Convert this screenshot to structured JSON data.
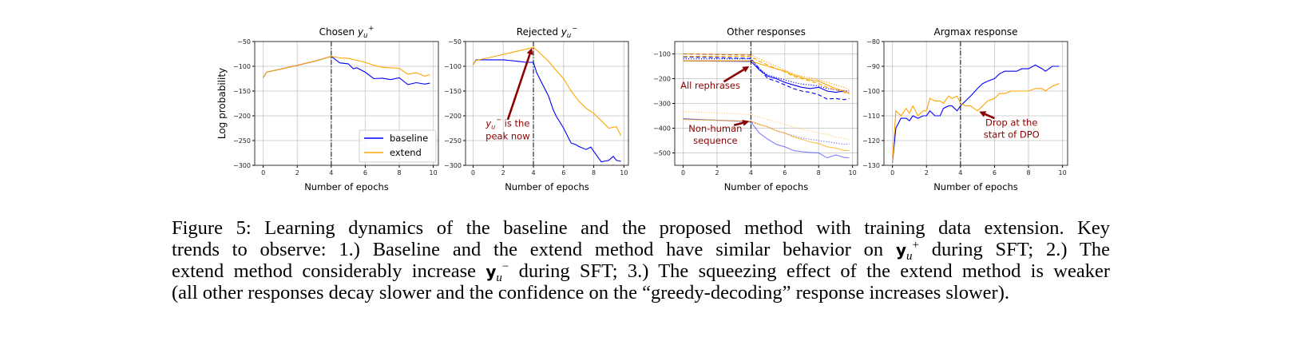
{
  "figure": {
    "y_axis_label": "Log probability",
    "x_axis_label": "Number of epochs",
    "colors": {
      "baseline": "#0000ff",
      "extend": "#ffa500",
      "annotation": "#8b0000",
      "divider": "#000000"
    },
    "legend": [
      {
        "label": "baseline",
        "color": "#0000ff"
      },
      {
        "label": "extend",
        "color": "#ffa500"
      }
    ]
  },
  "chart_data": [
    {
      "type": "line",
      "title": {
        "text": "Chosen",
        "symbol": "y",
        "sub": "u",
        "sup": "+"
      },
      "xlabel": "Number of epochs",
      "ylabel": "Log probability",
      "xlim": [
        -0.5,
        10.3
      ],
      "ylim": [
        -300,
        -50
      ],
      "xticks": [
        0,
        2,
        4,
        6,
        8,
        10
      ],
      "yticks": [
        -50,
        -100,
        -150,
        -200,
        -250,
        -300
      ],
      "grid": true,
      "legend": "bottom-right",
      "vline_x": 4,
      "series": [
        {
          "name": "baseline",
          "color": "#0000ff",
          "style": "solid",
          "x": [
            0,
            0.2,
            1,
            2,
            3,
            4,
            4.5,
            5,
            5.3,
            5.5,
            6,
            6.5,
            7,
            7.5,
            8,
            8.5,
            9,
            9.5,
            9.8
          ],
          "y": [
            -123,
            -112,
            -106,
            -98,
            -90,
            -80,
            -93,
            -95,
            -105,
            -103,
            -112,
            -125,
            -124,
            -127,
            -123,
            -137,
            -133,
            -136,
            -134
          ]
        },
        {
          "name": "extend",
          "color": "#ffa500",
          "style": "solid",
          "x": [
            0,
            0.2,
            1,
            2,
            3,
            4,
            4.5,
            5,
            5.5,
            6,
            6.5,
            7,
            7.5,
            8,
            8.5,
            9,
            9.5,
            9.8
          ],
          "y": [
            -123,
            -112,
            -106,
            -98,
            -90,
            -80,
            -83,
            -84,
            -88,
            -92,
            -98,
            -102,
            -103,
            -104,
            -116,
            -113,
            -120,
            -117
          ]
        }
      ],
      "annotations": []
    },
    {
      "type": "line",
      "title": {
        "text": "Rejected",
        "symbol": "y",
        "sub": "u",
        "sup": "−"
      },
      "xlabel": "Number of epochs",
      "xlim": [
        -0.5,
        10.3
      ],
      "ylim": [
        -300,
        -50
      ],
      "xticks": [
        0,
        2,
        4,
        6,
        8,
        10
      ],
      "yticks": [
        -50,
        -100,
        -150,
        -200,
        -250,
        -300
      ],
      "grid": true,
      "vline_x": 4,
      "series": [
        {
          "name": "baseline",
          "color": "#0000ff",
          "style": "solid",
          "x": [
            0,
            0.2,
            1,
            2,
            3,
            3.5,
            4,
            4.2,
            4.5,
            5,
            5.3,
            5.5,
            6,
            6.5,
            6.8,
            7,
            7.5,
            7.8,
            8,
            8.5,
            9,
            9.3,
            9.5,
            9.8
          ],
          "y": [
            -97,
            -87,
            -87,
            -87,
            -90,
            -92,
            -92,
            -112,
            -130,
            -160,
            -187,
            -200,
            -225,
            -255,
            -258,
            -262,
            -268,
            -263,
            -272,
            -293,
            -290,
            -282,
            -290,
            -292
          ]
        },
        {
          "name": "extend",
          "color": "#ffa500",
          "style": "solid",
          "x": [
            0,
            0.2,
            1,
            2,
            3,
            4,
            4.5,
            5,
            5.5,
            6,
            6.5,
            7,
            7.5,
            8,
            8.5,
            9,
            9.5,
            9.8
          ],
          "y": [
            -97,
            -88,
            -83,
            -76,
            -69,
            -62,
            -75,
            -90,
            -108,
            -125,
            -150,
            -170,
            -185,
            -195,
            -210,
            -225,
            -222,
            -240
          ]
        }
      ],
      "annotations": [
        {
          "lines": [
            "y_u^- is the",
            "peak now"
          ],
          "line1_prefix": {
            "symbol": "y",
            "sub": "u",
            "sup": "−",
            "rest": " is the"
          }
        }
      ]
    },
    {
      "type": "line",
      "title": {
        "text": "Other responses"
      },
      "xlabel": "Number of epochs",
      "xlim": [
        -0.5,
        10.3
      ],
      "ylim": [
        -550,
        -50
      ],
      "xticks": [
        0,
        2,
        4,
        6,
        8,
        10
      ],
      "yticks": [
        -100,
        -200,
        -300,
        -400,
        -500
      ],
      "grid": true,
      "vline_x": 4,
      "series": [
        {
          "color": "#0000ff",
          "style": "solid",
          "opacity": 1,
          "x": [
            0,
            4,
            4.5,
            5,
            5.5,
            6,
            6.5,
            7,
            7.5,
            8,
            8.5,
            9,
            9.5,
            9.8
          ],
          "y": [
            -128,
            -130,
            -165,
            -190,
            -200,
            -215,
            -225,
            -235,
            -240,
            -235,
            -250,
            -255,
            -250,
            -258
          ]
        },
        {
          "color": "#0000ff",
          "style": "dashed",
          "opacity": 1,
          "x": [
            0,
            4,
            4.5,
            5,
            5.5,
            6,
            6.5,
            7,
            7.5,
            8,
            8.5,
            9,
            9.5,
            9.8
          ],
          "y": [
            -112,
            -118,
            -160,
            -200,
            -210,
            -225,
            -240,
            -250,
            -255,
            -265,
            -282,
            -280,
            -285,
            -280
          ]
        },
        {
          "color": "#0000ff",
          "style": "dotted",
          "opacity": 1,
          "x": [
            0,
            4,
            4.5,
            5,
            5.5,
            6,
            6.5,
            7,
            7.5,
            8,
            8.5,
            9,
            9.5,
            9.8
          ],
          "y": [
            -120,
            -120,
            -160,
            -185,
            -195,
            -205,
            -215,
            -222,
            -225,
            -230,
            -240,
            -245,
            -248,
            -250
          ]
        },
        {
          "color": "#ffa500",
          "style": "solid",
          "opacity": 1,
          "x": [
            0,
            4,
            4.5,
            5,
            5.5,
            6,
            6.5,
            7,
            7.5,
            8,
            8.5,
            9,
            9.5,
            9.8
          ],
          "y": [
            -128,
            -128,
            -140,
            -150,
            -160,
            -170,
            -185,
            -195,
            -205,
            -210,
            -225,
            -240,
            -250,
            -258
          ]
        },
        {
          "color": "#ffa500",
          "style": "dashed",
          "opacity": 1,
          "x": [
            0,
            4,
            4.5,
            5,
            5.5,
            6,
            6.5,
            7,
            7.5,
            8,
            8.5,
            9,
            9.5,
            9.8
          ],
          "y": [
            -110,
            -110,
            -130,
            -145,
            -160,
            -172,
            -190,
            -200,
            -210,
            -220,
            -235,
            -245,
            -255,
            -262
          ]
        },
        {
          "color": "#ffa500",
          "style": "dotted",
          "opacity": 1,
          "x": [
            0,
            4,
            4.5,
            5,
            5.5,
            6,
            6.5,
            7,
            7.5,
            8,
            8.5,
            9,
            9.5,
            9.8
          ],
          "y": [
            -100,
            -103,
            -120,
            -135,
            -150,
            -165,
            -180,
            -190,
            -195,
            -205,
            -215,
            -225,
            -235,
            -245
          ]
        },
        {
          "color": "#a0522d",
          "style": "dashed",
          "opacity": 0.8,
          "x": [
            0,
            4
          ],
          "y": [
            -100,
            -105
          ]
        },
        {
          "color": "#0000ff",
          "style": "solid",
          "opacity": 0.5,
          "x": [
            0,
            1,
            2,
            3,
            4,
            4.5,
            5,
            5.5,
            6,
            6.5,
            7,
            7.5,
            8,
            8.5,
            9,
            9.5,
            9.8
          ],
          "y": [
            -362,
            -365,
            -368,
            -370,
            -375,
            -420,
            -445,
            -465,
            -475,
            -490,
            -495,
            -498,
            -500,
            -520,
            -508,
            -518,
            -520
          ]
        },
        {
          "color": "#0000ff",
          "style": "dotted",
          "opacity": 0.6,
          "x": [
            0,
            2,
            4,
            4.5,
            5,
            5.5,
            6,
            6.5,
            7,
            7.5,
            8,
            8.5,
            9,
            9.5,
            9.8
          ],
          "y": [
            -362,
            -368,
            -375,
            -385,
            -395,
            -410,
            -420,
            -430,
            -440,
            -445,
            -450,
            -455,
            -460,
            -465,
            -465
          ]
        },
        {
          "color": "#ffa500",
          "style": "solid",
          "opacity": 0.7,
          "x": [
            0,
            2,
            4,
            4.5,
            5,
            5.5,
            6,
            6.5,
            7,
            7.5,
            8,
            8.5,
            9,
            9.5,
            9.8
          ],
          "y": [
            -365,
            -368,
            -372,
            -385,
            -395,
            -410,
            -420,
            -435,
            -445,
            -455,
            -462,
            -475,
            -480,
            -490,
            -490
          ]
        },
        {
          "color": "#ffa500",
          "style": "dotted",
          "opacity": 0.6,
          "x": [
            0,
            2,
            4,
            4.5,
            5,
            5.5,
            6,
            6.5,
            7,
            7.5,
            8,
            8.5,
            9,
            9.5,
            9.8
          ],
          "y": [
            -333,
            -338,
            -345,
            -355,
            -365,
            -375,
            -385,
            -395,
            -405,
            -410,
            -420,
            -425,
            -435,
            -442,
            -447
          ]
        }
      ],
      "annotations": [
        {
          "lines": [
            "All rephrases"
          ]
        },
        {
          "lines": [
            "Non-human",
            "sequence"
          ]
        }
      ]
    },
    {
      "type": "line",
      "title": {
        "text": "Argmax response"
      },
      "xlabel": "Number of epochs",
      "xlim": [
        -0.5,
        10.3
      ],
      "ylim": [
        -130,
        -80
      ],
      "xticks": [
        0,
        2,
        4,
        6,
        8,
        10
      ],
      "yticks": [
        -80,
        -90,
        -100,
        -110,
        -120,
        -130
      ],
      "grid": true,
      "vline_x": 4,
      "series": [
        {
          "name": "baseline",
          "color": "#0000ff",
          "style": "solid",
          "x": [
            0,
            0.2,
            0.5,
            0.8,
            1,
            1.2,
            1.5,
            1.8,
            2,
            2.2,
            2.5,
            2.8,
            3,
            3.3,
            3.5,
            3.8,
            4,
            4.3,
            4.6,
            5,
            5.3,
            5.6,
            6,
            6.3,
            6.6,
            7,
            7.3,
            7.6,
            8,
            8.4,
            8.8,
            9,
            9.4,
            9.8
          ],
          "y": [
            -129,
            -115,
            -111,
            -111,
            -112,
            -110,
            -111,
            -110,
            -110,
            -108,
            -110,
            -110,
            -107,
            -106,
            -106,
            -108,
            -106,
            -104,
            -102,
            -99,
            -97,
            -96,
            -95,
            -93,
            -92,
            -92,
            -92,
            -91,
            -91,
            -89.5,
            -91,
            -92,
            -90,
            -90
          ]
        },
        {
          "name": "extend",
          "color": "#ffa500",
          "style": "solid",
          "x": [
            0,
            0.2,
            0.5,
            0.8,
            1,
            1.2,
            1.5,
            1.8,
            2,
            2.2,
            2.5,
            2.8,
            3,
            3.3,
            3.5,
            3.8,
            4,
            4.3,
            4.6,
            5,
            5.3,
            5.6,
            6,
            6.3,
            6.6,
            7,
            7.5,
            8,
            8.4,
            8.8,
            9,
            9.4,
            9.8
          ],
          "y": [
            -129,
            -108,
            -110,
            -107,
            -109,
            -106,
            -110,
            -108,
            -108,
            -103,
            -104,
            -104,
            -105,
            -102,
            -103,
            -102,
            -105,
            -106,
            -106,
            -108,
            -106,
            -104,
            -103,
            -101,
            -101,
            -100,
            -100,
            -100,
            -99,
            -99,
            -100,
            -98,
            -97
          ]
        }
      ],
      "annotations": [
        {
          "lines": [
            "Drop at the",
            "start of DPO"
          ]
        }
      ]
    }
  ],
  "caption": {
    "line1": "Figure 5: Learning dynamics of the baseline and the proposed method with training data extension. Key",
    "line2_a": "trends to observe: 1.) Baseline and the extend method have similar behavior on",
    "line2_sym": "y",
    "line2_sub": "u",
    "line2_sup": "+",
    "line2_b": "during SFT; 2.) The",
    "line3_a": "extend method considerably increase",
    "line3_sym": "y",
    "line3_sub": "u",
    "line3_sup": "−",
    "line3_b": "during SFT; 3.) The squeezing effect of the extend method is weaker",
    "line4": "(all other responses decay slower and the confidence on the “greedy-decoding” response increases slower)."
  }
}
